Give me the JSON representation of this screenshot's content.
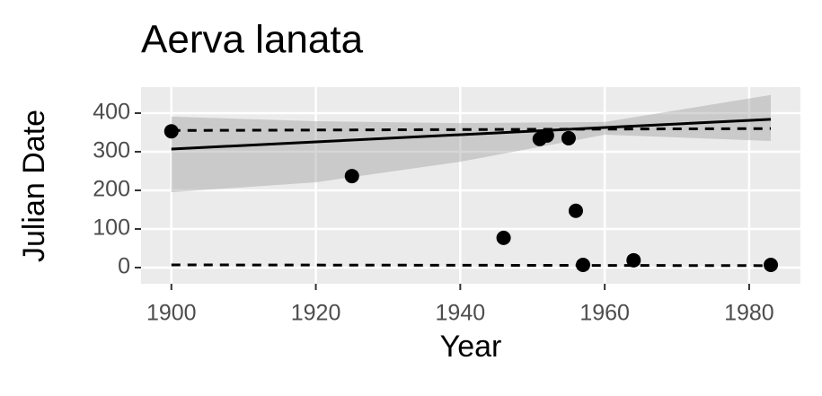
{
  "chart_data": {
    "type": "scatter",
    "title": "Aerva lanata",
    "x_label": "Year",
    "y_label": "Julian Date",
    "xlim": [
      1895.8,
      1987.1
    ],
    "ylim": [
      -41.9,
      467.4
    ],
    "xticks": [
      1900,
      1920,
      1940,
      1960,
      1980
    ],
    "yticks": [
      0,
      100,
      200,
      300,
      400
    ],
    "grid": true,
    "points": {
      "color": "#000000",
      "x": [
        1900,
        1925,
        1946,
        1951,
        1952,
        1955,
        1956,
        1957,
        1964,
        1983
      ],
      "y": [
        353,
        237,
        77,
        333,
        342,
        335,
        147,
        7,
        19,
        7
      ]
    },
    "band": {
      "color": "#999999",
      "x": [
        1900,
        1920,
        1940,
        1960,
        1983
      ],
      "upper": [
        391,
        379,
        374,
        377,
        447
      ],
      "lower": [
        195,
        221,
        274,
        344,
        328
      ]
    },
    "trend": {
      "color": "#000000",
      "x": [
        1900,
        1983
      ],
      "y": [
        307,
        384
      ]
    },
    "quantile_upper": {
      "color": "#000000",
      "x": [
        1900,
        1983
      ],
      "y": [
        355,
        360
      ]
    },
    "quantile_lower": {
      "color": "#000000",
      "x": [
        1900,
        1983
      ],
      "y": [
        7,
        5
      ]
    }
  }
}
